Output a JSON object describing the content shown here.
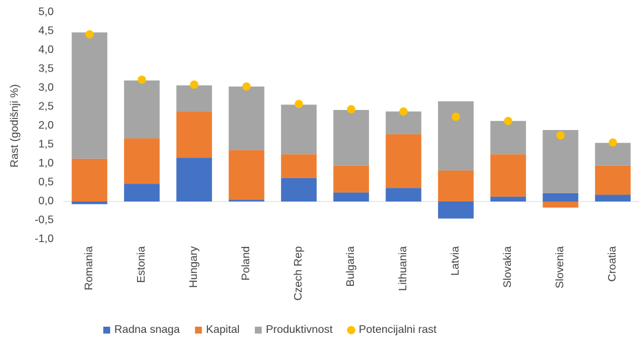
{
  "chart_data": {
    "type": "stacked_bar",
    "ylabel": "Rast (godišnji %)",
    "categories": [
      "Romania",
      "Estonia",
      "Hungary",
      "Poland",
      "Czech Rep",
      "Bulgaria",
      "Lithuania",
      "Latvia",
      "Slovakia",
      "Slovenia",
      "Croatia"
    ],
    "series": [
      {
        "name": "Radna snaga",
        "color": "#4472c4",
        "values": [
          -0.07,
          0.47,
          1.16,
          0.05,
          0.62,
          0.24,
          0.36,
          -0.45,
          0.13,
          0.22,
          0.18
        ]
      },
      {
        "name": "Kapital",
        "color": "#ed7d31",
        "values": [
          1.13,
          1.2,
          1.22,
          1.31,
          0.63,
          0.71,
          1.42,
          0.82,
          1.12,
          -0.16,
          0.77
        ]
      },
      {
        "name": "Produktivnost",
        "color": "#a5a5a5",
        "values": [
          3.34,
          1.53,
          0.69,
          1.68,
          1.31,
          1.47,
          0.6,
          1.83,
          0.88,
          1.67,
          0.6
        ]
      },
      {
        "name": "Potencijalni rast",
        "color": "#ffc000",
        "type": "scatter",
        "values": [
          4.42,
          3.22,
          3.09,
          3.04,
          2.58,
          2.44,
          2.38,
          2.24,
          2.13,
          1.75,
          1.56
        ]
      }
    ],
    "ylim": [
      -1.0,
      5.0
    ],
    "yticks": [
      {
        "value": -1.0,
        "label": "-1,0"
      },
      {
        "value": -0.5,
        "label": "-0,5"
      },
      {
        "value": 0,
        "label": "0,0"
      },
      {
        "value": 0.5,
        "label": "0,5"
      },
      {
        "value": 1.0,
        "label": "1,0"
      },
      {
        "value": 1.5,
        "label": "1,5"
      },
      {
        "value": 2.0,
        "label": "2,0"
      },
      {
        "value": 2.5,
        "label": "2,5"
      },
      {
        "value": 3.0,
        "label": "3,0"
      },
      {
        "value": 3.5,
        "label": "3,5"
      },
      {
        "value": 4.0,
        "label": "4,0"
      },
      {
        "value": 4.5,
        "label": "4,5"
      },
      {
        "value": 5.0,
        "label": "5,0"
      }
    ],
    "legend": "bottom"
  }
}
